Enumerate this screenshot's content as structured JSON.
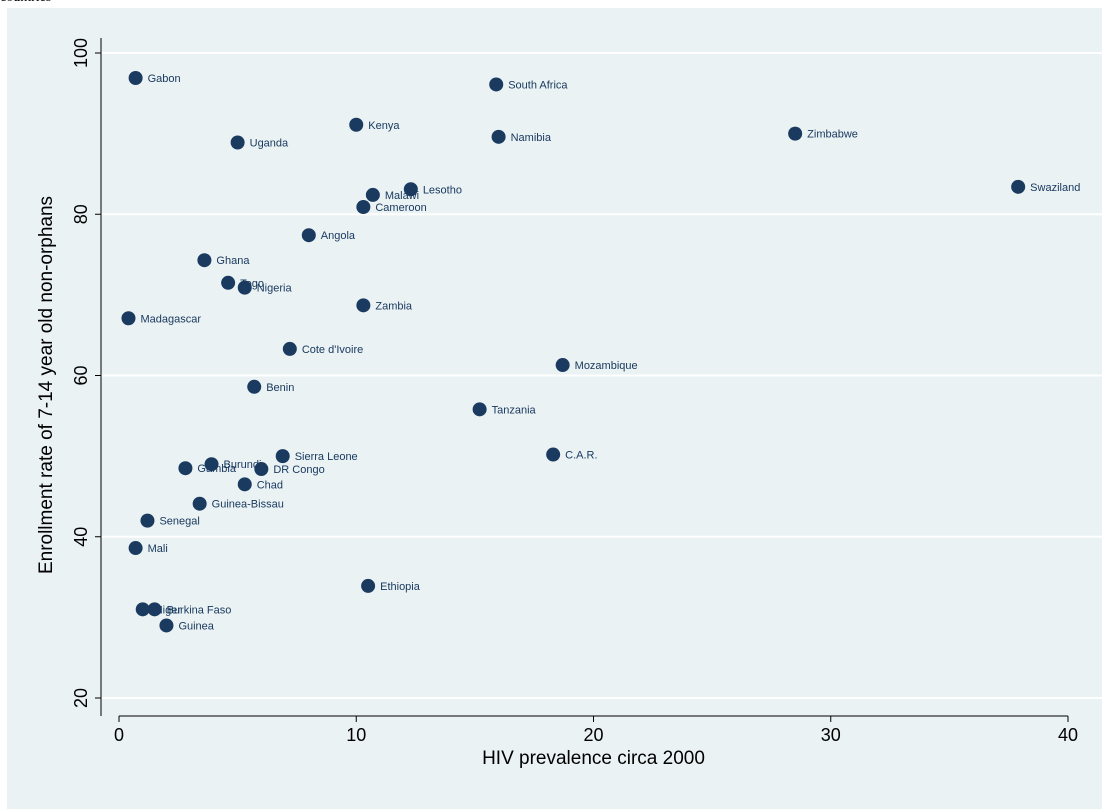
{
  "top_clipped_text": "countries",
  "chart_data": {
    "type": "scatter",
    "title": "",
    "xlabel": "HIV prevalence circa 2000",
    "ylabel": "Enrollment rate of 7-14 year old non-orphans",
    "xlim": [
      0,
      40
    ],
    "ylim": [
      20,
      100
    ],
    "x_ticks": [
      0,
      10,
      20,
      30,
      40
    ],
    "y_ticks": [
      20,
      40,
      60,
      80,
      100
    ],
    "grid": "horizontal",
    "marker_color": "#1a3a60",
    "background_color": "#eaf2f3",
    "points": [
      {
        "label": "Gabon",
        "x": 0.7,
        "y": 96.9
      },
      {
        "label": "South Africa",
        "x": 15.9,
        "y": 96.1
      },
      {
        "label": "Kenya",
        "x": 10.0,
        "y": 91.1
      },
      {
        "label": "Uganda",
        "x": 5.0,
        "y": 88.9
      },
      {
        "label": "Namibia",
        "x": 16.0,
        "y": 89.6
      },
      {
        "label": "Zimbabwe",
        "x": 28.5,
        "y": 90.0
      },
      {
        "label": "Lesotho",
        "x": 12.3,
        "y": 83.1
      },
      {
        "label": "Malawi",
        "x": 10.7,
        "y": 82.4
      },
      {
        "label": "Cameroon",
        "x": 10.3,
        "y": 80.9
      },
      {
        "label": "Swaziland",
        "x": 37.9,
        "y": 83.4
      },
      {
        "label": "Angola",
        "x": 8.0,
        "y": 77.4
      },
      {
        "label": "Ghana",
        "x": 3.6,
        "y": 74.3
      },
      {
        "label": "Togo",
        "x": 4.6,
        "y": 71.5
      },
      {
        "label": "Nigeria",
        "x": 5.3,
        "y": 70.9
      },
      {
        "label": "Zambia",
        "x": 10.3,
        "y": 68.7
      },
      {
        "label": "Madagascar",
        "x": 0.4,
        "y": 67.1
      },
      {
        "label": "Cote d'Ivoire",
        "x": 7.2,
        "y": 63.3
      },
      {
        "label": "Mozambique",
        "x": 18.7,
        "y": 61.3
      },
      {
        "label": "Benin",
        "x": 5.7,
        "y": 58.6
      },
      {
        "label": "Tanzania",
        "x": 15.2,
        "y": 55.8
      },
      {
        "label": "C.A.R.",
        "x": 18.3,
        "y": 50.2
      },
      {
        "label": "Sierra Leone",
        "x": 6.9,
        "y": 50.0
      },
      {
        "label": "Burundi",
        "x": 3.9,
        "y": 49.0
      },
      {
        "label": "Gambia",
        "x": 2.8,
        "y": 48.5
      },
      {
        "label": "DR Congo",
        "x": 6.0,
        "y": 48.4
      },
      {
        "label": "Chad",
        "x": 5.3,
        "y": 46.5
      },
      {
        "label": "Guinea-Bissau",
        "x": 3.4,
        "y": 44.1
      },
      {
        "label": "Senegal",
        "x": 1.2,
        "y": 42.0
      },
      {
        "label": "Mali",
        "x": 0.7,
        "y": 38.6
      },
      {
        "label": "Ethiopia",
        "x": 10.5,
        "y": 33.9
      },
      {
        "label": "Niger",
        "x": 1.0,
        "y": 31.0
      },
      {
        "label": "Burkina Faso",
        "x": 1.5,
        "y": 31.0
      },
      {
        "label": "Guinea",
        "x": 2.0,
        "y": 29.0
      }
    ]
  }
}
